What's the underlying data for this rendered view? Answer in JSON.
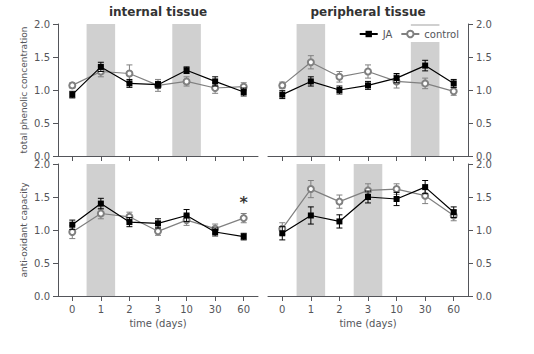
{
  "chart_data": [
    {
      "type": "line",
      "title": "internal tissue",
      "ylabel": "total phenolic concentration",
      "categories": [
        "0",
        "1",
        "2",
        "3",
        "10",
        "30",
        "60"
      ],
      "series": [
        {
          "name": "JA",
          "color": "black",
          "marker": "square",
          "values": [
            0.93,
            1.35,
            1.1,
            1.08,
            1.3,
            1.13,
            0.97
          ],
          "errors": [
            0.05,
            0.07,
            0.06,
            0.05,
            0.05,
            0.07,
            0.06
          ]
        },
        {
          "name": "control",
          "color": "gray",
          "marker": "circle",
          "values": [
            1.07,
            1.28,
            1.25,
            1.07,
            1.13,
            1.03,
            1.05
          ],
          "errors": [
            0.04,
            0.08,
            0.13,
            0.09,
            0.07,
            0.08,
            0.06
          ]
        }
      ],
      "ylim": [
        0.0,
        2.0
      ],
      "yticks": [
        {
          "value": 0.0,
          "label": "0.0"
        },
        0.5,
        {
          "value": 1.0,
          "label": "1.0"
        },
        1.5,
        {
          "value": 2.0,
          "label": "2.0"
        }
      ],
      "grid": false,
      "tick_labels": "y",
      "shaded_categories": [
        "1",
        "10"
      ],
      "shade_color": "#d0d0d0"
    },
    {
      "type": "line",
      "title": "peripheral tissue",
      "categories": [
        "0",
        "1",
        "2",
        "3",
        "10",
        "30",
        "60"
      ],
      "series": [
        {
          "name": "JA",
          "color": "black",
          "marker": "square",
          "values": [
            0.93,
            1.13,
            1.0,
            1.07,
            1.18,
            1.37,
            1.1
          ],
          "errors": [
            0.06,
            0.07,
            0.06,
            0.06,
            0.07,
            0.08,
            0.06
          ]
        },
        {
          "name": "control",
          "color": "gray",
          "marker": "circle",
          "values": [
            1.07,
            1.42,
            1.2,
            1.28,
            1.13,
            1.1,
            0.98
          ],
          "errors": [
            0.05,
            0.1,
            0.08,
            0.1,
            0.1,
            0.08,
            0.06
          ]
        }
      ],
      "ylim": [
        0.0,
        2.0
      ],
      "yticks": [
        {
          "value": 0.0,
          "label": "0.0"
        },
        0.5,
        {
          "value": 1.0,
          "label": "1.0"
        },
        1.5,
        {
          "value": 2.0,
          "label": "2.0"
        }
      ],
      "grid": false,
      "tick_labels": "y",
      "legend": "upper right",
      "shaded_categories": [
        "1",
        "30"
      ],
      "shade_color": "#d0d0d0"
    },
    {
      "type": "line",
      "ylabel": "anti-oxidant capacity",
      "xlabel": "time (days)",
      "categories": [
        "0",
        "1",
        "2",
        "3",
        "10",
        "30",
        "60"
      ],
      "series": [
        {
          "name": "JA",
          "color": "black",
          "marker": "square",
          "values": [
            1.08,
            1.4,
            1.12,
            1.1,
            1.22,
            0.97,
            0.9
          ],
          "errors": [
            0.07,
            0.08,
            0.07,
            0.07,
            0.09,
            0.06,
            0.05
          ]
        },
        {
          "name": "control",
          "color": "gray",
          "marker": "circle",
          "values": [
            0.97,
            1.25,
            1.2,
            0.98,
            1.15,
            1.02,
            1.18
          ],
          "errors": [
            0.1,
            0.08,
            0.07,
            0.06,
            0.08,
            0.07,
            0.07
          ]
        }
      ],
      "ylim": [
        0.0,
        2.0
      ],
      "yticks": [
        {
          "value": 0.0,
          "label": "0.0"
        },
        0.5,
        {
          "value": 1.0,
          "label": "1.0"
        },
        1.5,
        {
          "value": 2.0,
          "label": "2.0"
        }
      ],
      "grid": false,
      "annotations": [
        {
          "text": "*",
          "category": "60",
          "y": 1.42
        }
      ],
      "shaded_categories": [
        "1"
      ],
      "shade_color": "#d0d0d0"
    },
    {
      "type": "line",
      "xlabel": "time (days)",
      "categories": [
        "0",
        "1",
        "2",
        "3",
        "10",
        "30",
        "60"
      ],
      "series": [
        {
          "name": "JA",
          "color": "black",
          "marker": "square",
          "values": [
            0.95,
            1.22,
            1.13,
            1.5,
            1.47,
            1.65,
            1.27
          ],
          "errors": [
            0.1,
            0.13,
            0.1,
            0.09,
            0.1,
            0.1,
            0.08
          ]
        },
        {
          "name": "control",
          "color": "gray",
          "marker": "circle",
          "values": [
            1.02,
            1.62,
            1.43,
            1.6,
            1.62,
            1.52,
            1.22
          ],
          "errors": [
            0.09,
            0.13,
            0.1,
            0.1,
            0.08,
            0.12,
            0.08
          ]
        }
      ],
      "ylim": [
        0.0,
        2.0
      ],
      "yticks": [
        {
          "value": 0.0,
          "label": "0.0"
        },
        0.5,
        {
          "value": 1.0,
          "label": "1.0"
        },
        1.5,
        {
          "value": 2.0,
          "label": "2.0"
        }
      ],
      "grid": false,
      "shaded_categories": [
        "1",
        "3"
      ],
      "shade_color": "#d0d0d0"
    }
  ]
}
